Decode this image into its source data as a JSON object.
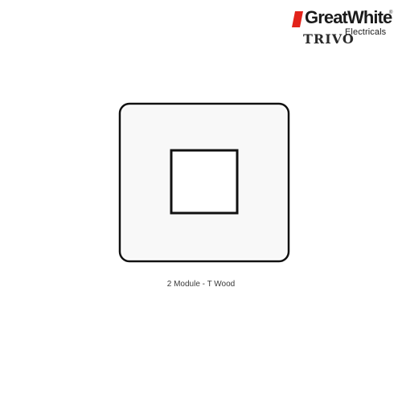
{
  "brand": {
    "name": "GreatWhite",
    "registered_mark": "®",
    "subtitle": "Electricals",
    "series": "TRIVO",
    "accent_color": "#e2231a"
  },
  "product": {
    "caption": "2 Module - T Wood",
    "plate_color": "#ffffff",
    "frame_color": "#111111"
  }
}
